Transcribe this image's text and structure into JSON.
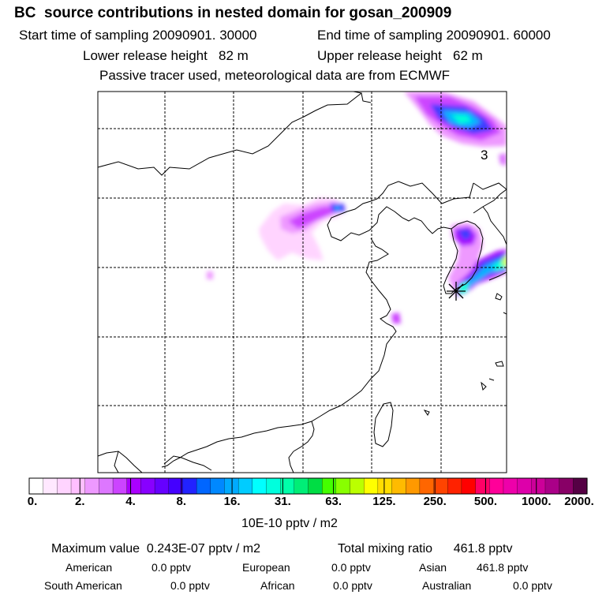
{
  "header": {
    "title": "BC  source contributions in nested domain for gosan_200909",
    "start_time": "Start time of sampling 20090901. 30000",
    "end_time": "End time of sampling 20090901. 60000",
    "lower_height": "Lower release height   82 m",
    "upper_height": "Upper release height   62 m",
    "tracer": "Passive tracer used, meteorological data are from ECMWF"
  },
  "map": {
    "annotation": "3",
    "plume_colors": [
      "#ff00ff",
      "#c000ff",
      "#3c3cff",
      "#00b4ff",
      "#00ffd8",
      "#c8ff00"
    ]
  },
  "colorbar": {
    "colors": [
      "#ffffff",
      "#ffe8ff",
      "#ffd4ff",
      "#ffbfff",
      "#ee99ff",
      "#dd77ff",
      "#cc44ff",
      "#aa00ff",
      "#8800ff",
      "#6600ff",
      "#4400ff",
      "#2222ff",
      "#0066ff",
      "#0088ff",
      "#00aaff",
      "#00ccff",
      "#00ffff",
      "#00ffdd",
      "#00ffaa",
      "#00ee77",
      "#00dd44",
      "#44ff00",
      "#88ff00",
      "#bbff00",
      "#ffff00",
      "#ffdd00",
      "#ffbb00",
      "#ff9900",
      "#ff6600",
      "#ff4400",
      "#ff2200",
      "#ff0000",
      "#ff0066",
      "#ff0099",
      "#ee00aa",
      "#dd00aa",
      "#cc0099",
      "#aa0088",
      "#880066",
      "#550044"
    ],
    "tick_labels": [
      "0.",
      "2.",
      "4.",
      "8.",
      "16.",
      "31.",
      "63.",
      "125.",
      "250.",
      "500.",
      "1000.",
      "2000."
    ],
    "units": "10E-10 pptv / m2"
  },
  "summary": {
    "max_value": "Maximum value  0.243E-07 pptv / m2",
    "total_mixing": "Total mixing ratio      461.8 pptv",
    "american_label": "American",
    "american_value": "0.0 pptv",
    "european_label": "European",
    "european_value": "0.0 pptv",
    "asian_label": "Asian",
    "asian_value": "461.8 pptv",
    "south_american_label": "South American",
    "south_american_value": "0.0 pptv",
    "african_label": "African",
    "african_value": "0.0 pptv",
    "australian_label": "Australian",
    "australian_value": "0.0 pptv"
  }
}
